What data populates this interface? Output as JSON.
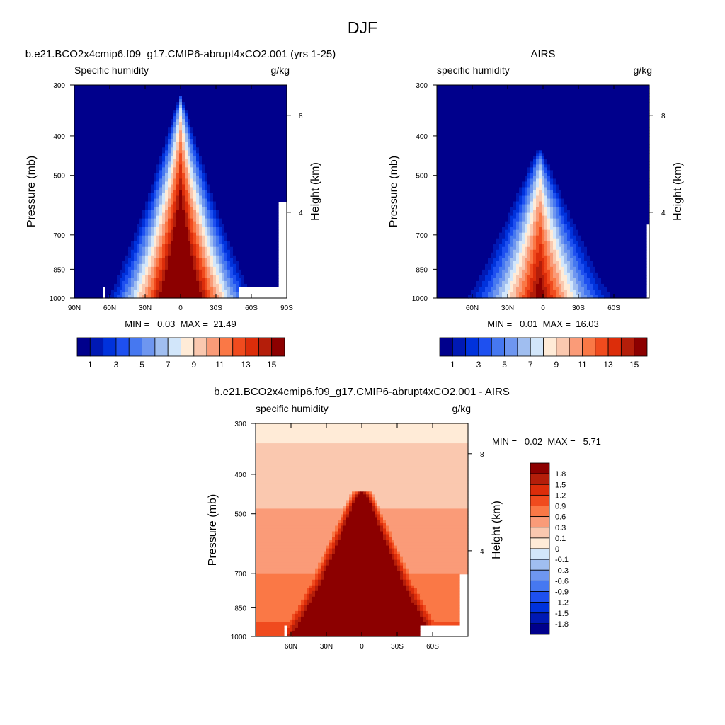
{
  "figure": {
    "title": "DJF"
  },
  "chart_data": [
    {
      "type": "contour",
      "title": "b.e21.BCO2x4cmip6.f09_g17.CMIP6-abrupt4xCO2.001 (yrs 1-25)",
      "variable": "Specific humidity",
      "units": "g/kg",
      "ylabel": "Pressure (mb)",
      "y2label": "Height (km)",
      "xlim": [
        90,
        -90
      ],
      "ylim": [
        1000,
        300
      ],
      "xticks": [
        {
          "value": 90,
          "label": "90N"
        },
        {
          "value": 60,
          "label": "60N"
        },
        {
          "value": 30,
          "label": "30N"
        },
        {
          "value": 0,
          "label": "0"
        },
        {
          "value": -30,
          "label": "30S"
        },
        {
          "value": -60,
          "label": "60S"
        },
        {
          "value": -90,
          "label": "90S"
        }
      ],
      "yticks": [
        300,
        400,
        500,
        700,
        850,
        1000
      ],
      "y2ticks": [
        {
          "height_km": 8,
          "pressure": 356,
          "label": "8"
        },
        {
          "height_km": 4,
          "pressure": 616,
          "label": "4"
        }
      ],
      "stats_text": "MIN =   0.03  MAX =  21.49",
      "min": 0.03,
      "max": 21.49,
      "peak": {
        "lat": 0,
        "value": 21.49,
        "top_pressure": 320,
        "half_width_bottom_deg": 64,
        "power": 1.15
      },
      "contour_levels": [
        1,
        2,
        3,
        4,
        5,
        6,
        7,
        8,
        9,
        10,
        11,
        12,
        13,
        14,
        15
      ],
      "colorbar_labels": [
        "1",
        "3",
        "5",
        "7",
        "9",
        "11",
        "13",
        "15"
      ],
      "missing_regions": [
        {
          "lat_from": -50,
          "lat_to": -90,
          "p_from": 935,
          "p_to": 1000
        },
        {
          "lat_from": -83,
          "lat_to": -90,
          "p_from": 580,
          "p_to": 935
        },
        {
          "lat_from": 66,
          "lat_to": 64,
          "p_from": 940,
          "p_to": 1000
        }
      ]
    },
    {
      "type": "contour",
      "title": "AIRS",
      "variable": "specific humidity",
      "units": "g/kg",
      "ylabel": "Pressure (mb)",
      "y2label": "Height (km)",
      "xlim": [
        90,
        -90
      ],
      "ylim": [
        1000,
        300
      ],
      "xticks": [
        {
          "value": 60,
          "label": "60N"
        },
        {
          "value": 30,
          "label": "30N"
        },
        {
          "value": 0,
          "label": "0"
        },
        {
          "value": -30,
          "label": "30S"
        },
        {
          "value": -60,
          "label": "60S"
        }
      ],
      "yticks": [
        300,
        400,
        500,
        700,
        850,
        1000
      ],
      "y2ticks": [
        {
          "height_km": 8,
          "pressure": 356,
          "label": "8"
        },
        {
          "height_km": 4,
          "pressure": 616,
          "label": "4"
        }
      ],
      "stats_text": "MIN =   0.01  MAX =  16.03",
      "min": 0.01,
      "max": 16.03,
      "peak": {
        "lat": 3,
        "value": 16.03,
        "top_pressure": 430,
        "half_width_bottom_deg": 66,
        "power": 1.3
      },
      "contour_levels": [
        1,
        2,
        3,
        4,
        5,
        6,
        7,
        8,
        9,
        10,
        11,
        12,
        13,
        14,
        15
      ],
      "colorbar_labels": [
        "1",
        "3",
        "5",
        "7",
        "9",
        "11",
        "13",
        "15"
      ],
      "missing_regions": [
        {
          "lat_from": -87,
          "lat_to": -90,
          "p_from": 660,
          "p_to": 1000
        }
      ]
    },
    {
      "type": "contour",
      "title": "b.e21.BCO2x4cmip6.f09_g17.CMIP6-abrupt4xCO2.001 - AIRS",
      "variable": "specific humidity",
      "units": "g/kg",
      "ylabel": "Pressure (mb)",
      "y2label": "Height (km)",
      "xlim": [
        90,
        -90
      ],
      "ylim": [
        1000,
        300
      ],
      "xticks": [
        {
          "value": 60,
          "label": "60N"
        },
        {
          "value": 30,
          "label": "30N"
        },
        {
          "value": 0,
          "label": "0"
        },
        {
          "value": -30,
          "label": "30S"
        },
        {
          "value": -60,
          "label": "60S"
        }
      ],
      "yticks": [
        300,
        400,
        500,
        700,
        850,
        1000
      ],
      "y2ticks": [
        {
          "height_km": 8,
          "pressure": 356,
          "label": "8"
        },
        {
          "height_km": 4,
          "pressure": 616,
          "label": "4"
        }
      ],
      "stats_text": "MIN =   0.02  MAX =   5.71",
      "min": 0.02,
      "max": 5.71,
      "contour_levels": [
        -1.8,
        -1.5,
        -1.2,
        -0.9,
        -0.6,
        -0.3,
        -0.1,
        0,
        0.1,
        0.3,
        0.6,
        0.9,
        1.2,
        1.5,
        1.8
      ],
      "colorbar_labels": [
        "1.8",
        "1.5",
        "1.2",
        "0.9",
        "0.6",
        "0.3",
        "0.1",
        "0",
        "-0.1",
        "-0.3",
        "-0.6",
        "-0.9",
        "-1.2",
        "-1.5",
        "-1.8"
      ],
      "missing_regions": [
        {
          "lat_from": -50,
          "lat_to": -90,
          "p_from": 940,
          "p_to": 1000
        },
        {
          "lat_from": -84,
          "lat_to": -90,
          "p_from": 700,
          "p_to": 940
        },
        {
          "lat_from": 67,
          "lat_to": 63,
          "p_from": 940,
          "p_to": 1000
        }
      ]
    }
  ],
  "palettes": {
    "sequential": [
      "#00008c",
      "#0019b4",
      "#0032dc",
      "#1e50f0",
      "#4678f0",
      "#6e96f0",
      "#a0bef0",
      "#d2e6fa",
      "#ffebd7",
      "#fac8af",
      "#fa9b78",
      "#fa7846",
      "#f04b1e",
      "#dc2d0a",
      "#b41e0a",
      "#8c0000"
    ],
    "diverging": [
      "#00008c",
      "#0019b4",
      "#0032dc",
      "#1e50f0",
      "#4678f0",
      "#6e96f0",
      "#a0bef0",
      "#d2e6fa",
      "#ffebd7",
      "#fac8af",
      "#fa9b78",
      "#fa7846",
      "#f04b1e",
      "#dc2d0a",
      "#b41e0a",
      "#8c0000"
    ]
  }
}
